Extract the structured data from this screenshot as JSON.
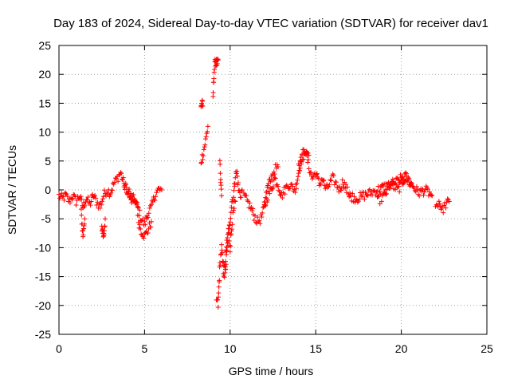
{
  "chart_data": {
    "type": "scatter",
    "title": "Day 183 of 2024, Sidereal Day-to-day VTEC variation (SDTVAR) for receiver dav1",
    "xlabel": "GPS time / hours",
    "ylabel": "SDTVAR / TECUs",
    "xlim": [
      0,
      25
    ],
    "ylim": [
      -25,
      25
    ],
    "xticks": [
      "0",
      "5",
      "10",
      "15",
      "20",
      "25"
    ],
    "yticks": [
      "25",
      "20",
      "15",
      "10",
      "5",
      "0",
      "-5",
      "-10",
      "-15",
      "-20",
      "-25"
    ],
    "grid": true,
    "marker": "+",
    "series": [
      {
        "name": "SDTVAR",
        "color": "#ff0000",
        "segments": [
          {
            "x": [
              0.0,
              0.2,
              0.4,
              0.6,
              0.8,
              1.0,
              1.2,
              1.4,
              1.6,
              1.8,
              2.0,
              2.2,
              2.4,
              2.6,
              2.8,
              3.0,
              3.2,
              3.4,
              3.6,
              3.8,
              4.0,
              4.2,
              4.4,
              4.6,
              4.8,
              5.0,
              5.2,
              5.4,
              5.6,
              5.8,
              6.0
            ],
            "y": [
              -1.0,
              -1.5,
              -1.0,
              -2.0,
              -1.0,
              -2.0,
              -1.0,
              -3.0,
              -1.5,
              -2.5,
              -1.0,
              -2.0,
              -3.0,
              -1.0,
              0.0,
              -0.5,
              1.0,
              2.0,
              3.0,
              1.0,
              0.0,
              -2.0,
              -1.5,
              -3.0,
              -5.0,
              -6.0,
              -4.0,
              -3.0,
              -1.0,
              0.0,
              0.0
            ]
          },
          {
            "x": [
              1.3,
              1.35,
              1.4,
              1.45,
              1.5
            ],
            "y": [
              -4.0,
              -6.0,
              -8.0,
              -6.5,
              -5.0
            ]
          },
          {
            "x": [
              2.5,
              2.55,
              2.6,
              2.65,
              2.7
            ],
            "y": [
              -6.0,
              -7.5,
              -8.5,
              -7.0,
              -5.0
            ]
          },
          {
            "x": [
              4.6,
              4.8,
              5.0,
              5.2,
              5.4
            ],
            "y": [
              -5.0,
              -7.0,
              -8.0,
              -7.0,
              -5.5
            ]
          },
          {
            "x": [
              3.8,
              4.2,
              4.6
            ],
            "y": [
              0.5,
              -1.0,
              -3.0
            ]
          },
          {
            "x": [
              8.3,
              8.4,
              8.5,
              8.6,
              8.7
            ],
            "y": [
              5.0,
              6.0,
              7.5,
              9.0,
              11.0
            ]
          },
          {
            "x": [
              8.3,
              8.35,
              8.4
            ],
            "y": [
              14.5,
              15.0,
              14.5
            ]
          },
          {
            "x": [
              9.0,
              9.05,
              9.1,
              9.15,
              9.2,
              9.25,
              9.3
            ],
            "y": [
              16.0,
              20.0,
              21.5,
              22.5,
              22.0,
              21.5,
              22.5
            ]
          },
          {
            "x": [
              9.2,
              9.3,
              9.4,
              9.5,
              9.6,
              9.7,
              9.8,
              9.9,
              10.0,
              10.1,
              10.2,
              10.3,
              10.4,
              10.5,
              10.6,
              10.7
            ],
            "y": [
              -19.0,
              -20.0,
              -13.0,
              -10.0,
              -14.0,
              -15.0,
              -11.0,
              -8.0,
              -5.0,
              -2.0,
              -1.0,
              2.5,
              3.0,
              0.0,
              -1.0,
              0.0
            ]
          },
          {
            "x": [
              9.4,
              9.45,
              9.5
            ],
            "y": [
              5.0,
              1.0,
              -1.0
            ]
          },
          {
            "x": [
              9.6,
              9.7,
              9.8,
              9.9,
              10.0,
              10.1,
              10.2,
              10.3
            ],
            "y": [
              -12.0,
              -14.0,
              -9.0,
              -7.0,
              -10.0,
              -6.0,
              -4.0,
              -2.0
            ]
          },
          {
            "x": [
              10.8,
              11.0,
              11.2,
              11.4,
              11.6,
              11.8,
              12.0,
              12.2,
              12.4,
              12.6,
              12.8,
              13.0,
              13.2,
              13.4,
              13.6,
              13.8,
              14.0,
              14.2,
              14.4,
              14.6,
              14.8,
              15.0,
              15.2,
              15.4,
              15.6,
              15.8,
              16.0,
              16.2,
              16.4,
              16.6,
              16.8,
              17.0
            ],
            "y": [
              -1.0,
              -2.0,
              -3.0,
              -4.5,
              -5.5,
              -5.0,
              -3.0,
              -1.0,
              0.0,
              2.0,
              1.0,
              -1.0,
              0.0,
              1.0,
              0.5,
              0.0,
              3.0,
              6.0,
              7.0,
              4.0,
              2.0,
              3.0,
              1.0,
              2.0,
              0.0,
              1.0,
              2.0,
              1.0,
              0.0,
              1.5,
              0.0,
              -1.0
            ]
          },
          {
            "x": [
              12.0,
              12.2,
              12.4,
              12.6,
              12.8
            ],
            "y": [
              -2.0,
              0.5,
              2.0,
              3.5,
              4.0
            ]
          },
          {
            "x": [
              14.0,
              14.2,
              14.4,
              14.6
            ],
            "y": [
              4.0,
              5.5,
              7.0,
              6.0
            ]
          },
          {
            "x": [
              17.0,
              17.4,
              17.8,
              18.2,
              18.6,
              19.0,
              19.4,
              19.8,
              20.2,
              20.6,
              21.0,
              21.4,
              21.8
            ],
            "y": [
              -1.0,
              -1.5,
              -1.0,
              -0.5,
              0.0,
              0.5,
              1.0,
              0.0,
              2.0,
              1.0,
              -0.5,
              0.0,
              -1.0
            ]
          },
          {
            "x": [
              18.6,
              19.0,
              19.4,
              19.8,
              20.2,
              20.6
            ],
            "y": [
              -2.0,
              -1.0,
              1.0,
              1.5,
              2.5,
              1.0
            ]
          },
          {
            "x": [
              22.0,
              22.2,
              22.4,
              22.6,
              22.8
            ],
            "y": [
              -3.0,
              -2.0,
              -3.5,
              -2.5,
              -2.0
            ]
          }
        ]
      }
    ]
  }
}
